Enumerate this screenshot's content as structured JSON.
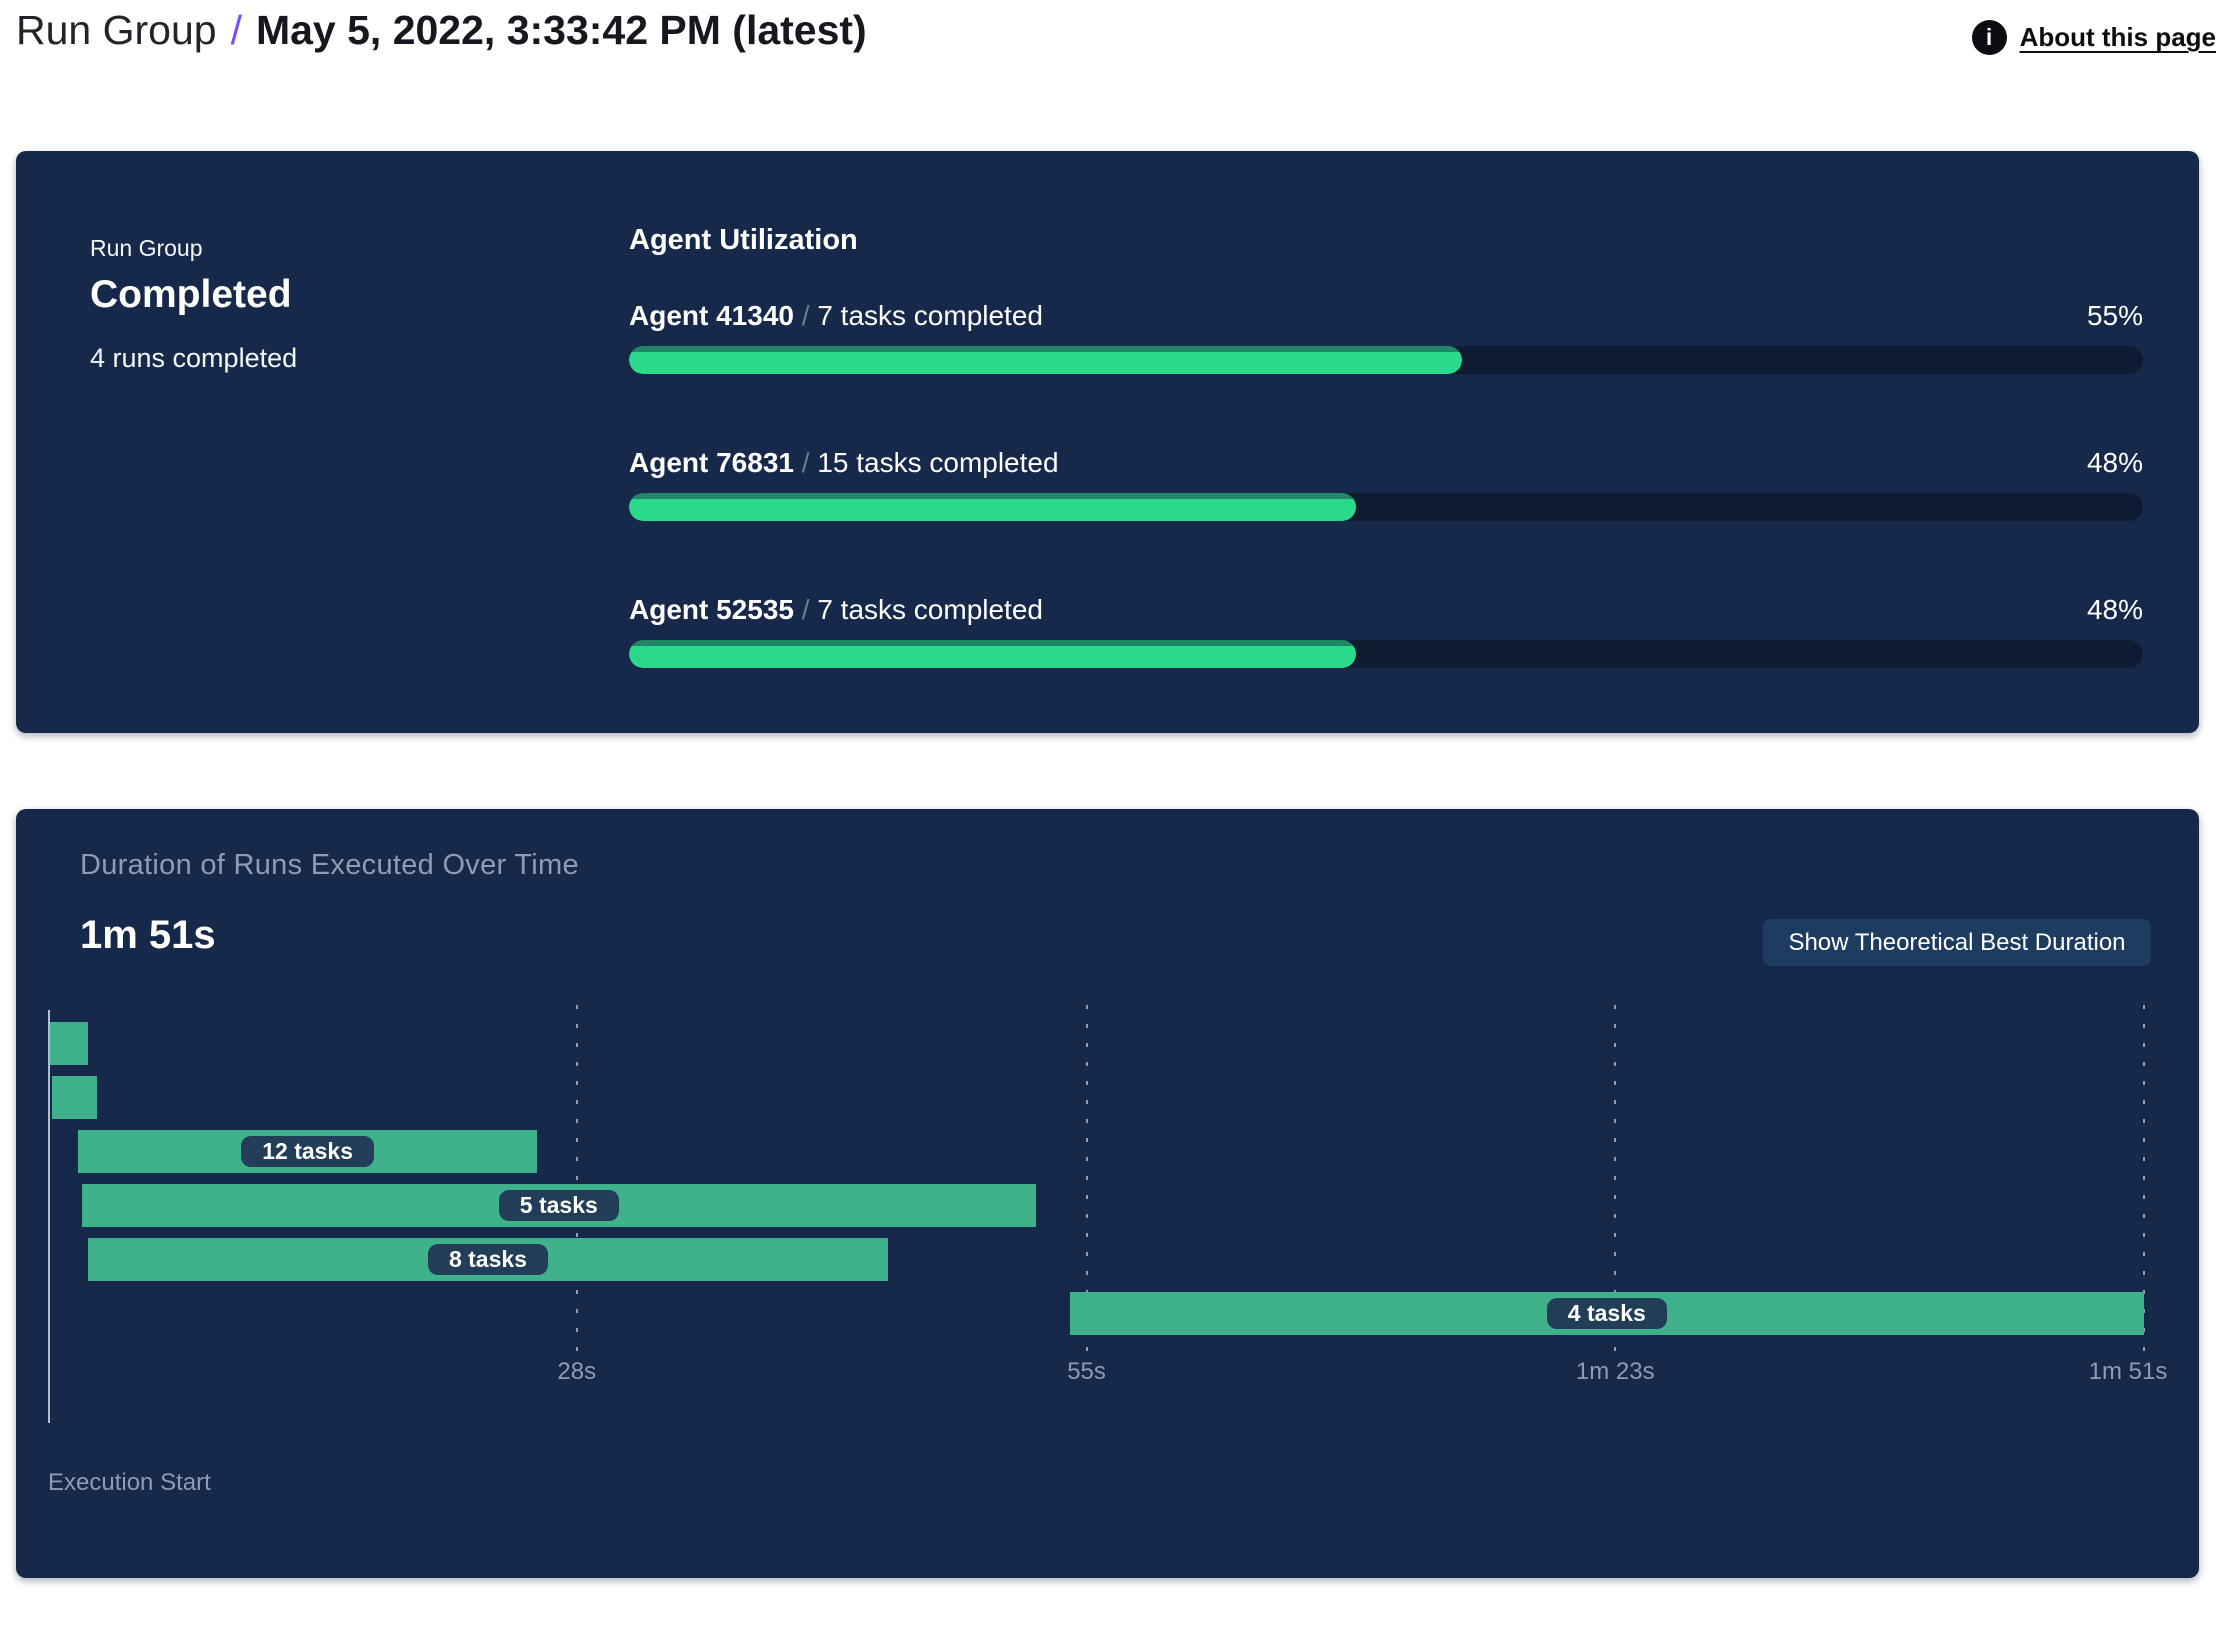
{
  "header": {
    "breadcrumb_root": "Run Group",
    "breadcrumb_separator": "/",
    "breadcrumb_current": "May 5, 2022, 3:33:42 PM (latest)",
    "about_link": "About this page",
    "info_icon_glyph": "i"
  },
  "summary_panel": {
    "label": "Run Group",
    "status": "Completed",
    "runs_completed": "4 runs completed",
    "agent_utilization": {
      "title": "Agent Utilization",
      "separator": "/",
      "agents": [
        {
          "name": "Agent 41340",
          "tasks": "7 tasks completed",
          "percent": "55%",
          "value": 55
        },
        {
          "name": "Agent 76831",
          "tasks": "15 tasks completed",
          "percent": "48%",
          "value": 48
        },
        {
          "name": "Agent 52535",
          "tasks": "7 tasks completed",
          "percent": "48%",
          "value": 48
        }
      ]
    }
  },
  "duration_panel": {
    "title": "Duration of Runs Executed Over Time",
    "total_duration": "1m 51s",
    "button_label": "Show Theoretical Best Duration",
    "execution_start_label": "Execution Start"
  },
  "chart_data": {
    "type": "bar",
    "subtype": "gantt-timeline",
    "title": "Duration of Runs Executed Over Time",
    "total_duration_label": "1m 51s",
    "x_unit": "seconds",
    "xlim": [
      0,
      111
    ],
    "grid": "dashed-vertical",
    "x_ticks": [
      {
        "label": "28s",
        "seconds": 28
      },
      {
        "label": "55s",
        "seconds": 55
      },
      {
        "label": "1m 23s",
        "seconds": 83
      },
      {
        "label": "1m 51s",
        "seconds": 111
      }
    ],
    "runs": [
      {
        "label": "",
        "tasks": null,
        "start_s": 0.1,
        "end_s": 2.1
      },
      {
        "label": "",
        "tasks": null,
        "start_s": 0.2,
        "end_s": 2.6
      },
      {
        "label": "12 tasks",
        "tasks": 12,
        "start_s": 1.6,
        "end_s": 25.9
      },
      {
        "label": "5 tasks",
        "tasks": 5,
        "start_s": 1.8,
        "end_s": 52.3
      },
      {
        "label": "8 tasks",
        "tasks": 8,
        "start_s": 2.1,
        "end_s": 44.5
      },
      {
        "label": "4 tasks",
        "tasks": 4,
        "start_s": 54.1,
        "end_s": 111
      }
    ],
    "annotations": [
      "Execution Start"
    ]
  },
  "colors": {
    "panel_bg": "#17294A",
    "progress_track": "#0D1B33",
    "progress_fill": "#2BD98A",
    "progress_fill_top": "#1F8765",
    "gantt_bar": "#3FB28B",
    "pill_bg": "#213D58",
    "button_bg": "#1E3B60",
    "muted_text": "#8E9BB3",
    "axis_line": "#B3BDCB",
    "breadcrumb_separator": "#7A4FF0"
  }
}
